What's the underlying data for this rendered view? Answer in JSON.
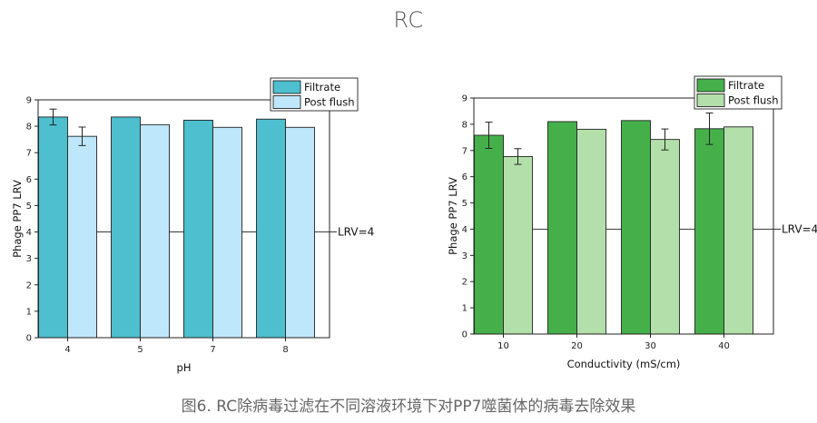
{
  "header": {
    "title": "RC"
  },
  "caption": "图6. RC除病毒过滤在不同溶液环境下对PP7噬菌体的病毒去除效果",
  "chart_data": [
    {
      "type": "bar",
      "xlabel": "pH",
      "ylabel": "Phage PP7 LRV",
      "categories": [
        "4",
        "5",
        "7",
        "8"
      ],
      "ylim": [
        0,
        9
      ],
      "yticks": [
        "0",
        "1",
        "2",
        "3",
        "4",
        "5",
        "6",
        "7",
        "8",
        "9"
      ],
      "series": [
        {
          "name": "Filtrate",
          "values": [
            8.35,
            8.35,
            8.23,
            8.27
          ],
          "errors": [
            0.3,
            null,
            null,
            null
          ],
          "color": "#4dbfcf"
        },
        {
          "name": "Post flush",
          "values": [
            7.62,
            8.06,
            7.96,
            7.96
          ],
          "errors": [
            0.35,
            null,
            null,
            null
          ],
          "color": "#bfe7fb"
        }
      ],
      "reference_line": {
        "value": 4,
        "label": "LRV=4"
      },
      "legend_position": "top-right",
      "grid": false
    },
    {
      "type": "bar",
      "xlabel": "Conductivity (mS/cm)",
      "ylabel": "Phage PP7 LRV",
      "categories": [
        "10",
        "20",
        "30",
        "40"
      ],
      "ylim": [
        0,
        9
      ],
      "yticks": [
        "0",
        "1",
        "2",
        "3",
        "4",
        "5",
        "6",
        "7",
        "8",
        "9"
      ],
      "series": [
        {
          "name": "Filtrate",
          "values": [
            7.58,
            8.1,
            8.14,
            7.83
          ],
          "errors": [
            0.5,
            null,
            null,
            0.6
          ],
          "color": "#45b04a"
        },
        {
          "name": "Post flush",
          "values": [
            6.77,
            7.81,
            7.42,
            7.9
          ],
          "errors": [
            0.3,
            null,
            0.4,
            null
          ],
          "color": "#b3e0aa"
        }
      ],
      "reference_line": {
        "value": 4,
        "label": "LRV=4"
      },
      "legend_position": "top-right",
      "grid": false
    }
  ]
}
